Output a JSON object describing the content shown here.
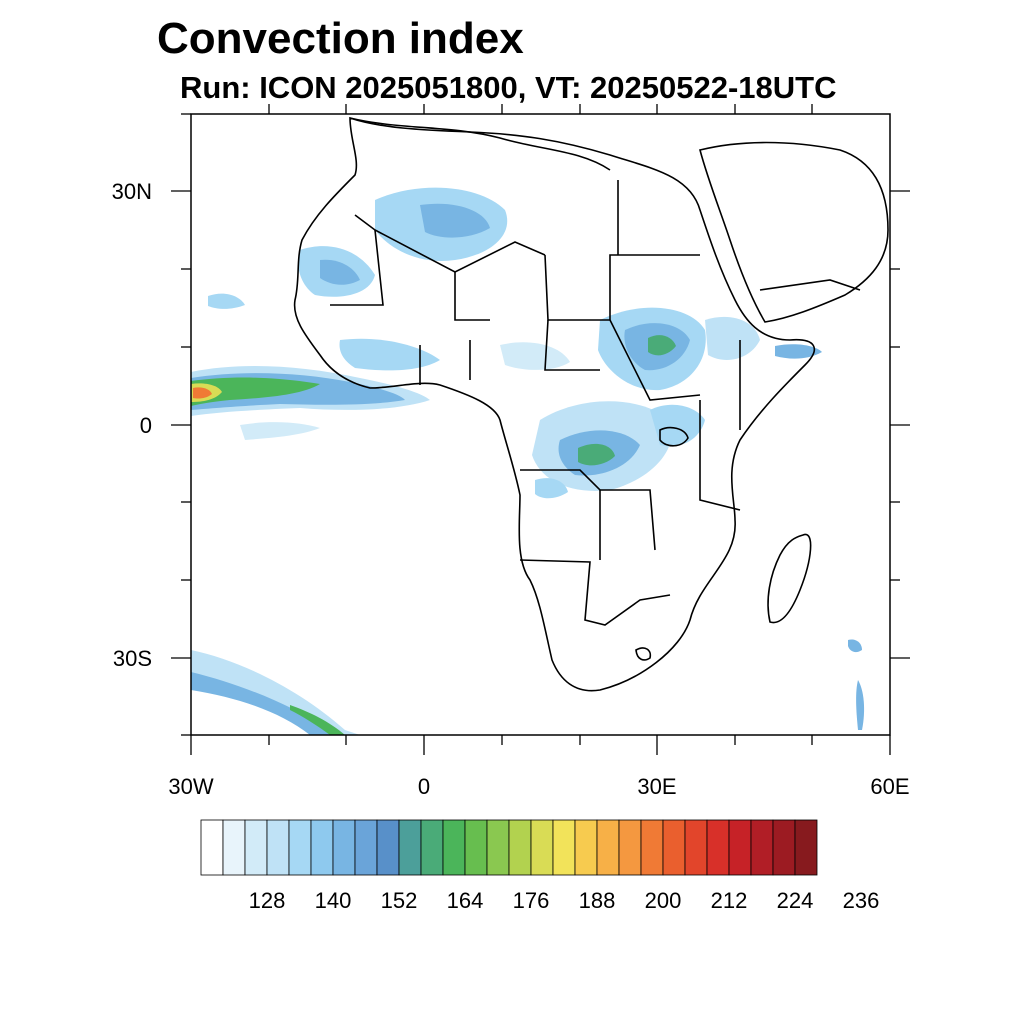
{
  "title": "Convection index",
  "subtitle": "Run: ICON 2025051800,  VT: 20250522-18UTC",
  "map": {
    "lon_range": [
      -30,
      60
    ],
    "lat_range": [
      -40,
      40
    ],
    "y_tick_labels": [
      "30N",
      "0",
      "30S"
    ],
    "x_tick_labels": [
      "30W",
      "0",
      "30E",
      "60E"
    ],
    "field": "convection index (shaded contours)",
    "land_outline_color": "#000000",
    "ocean_land_fill": "#ffffff"
  },
  "colorbar": {
    "colors": [
      "#ffffff",
      "#e8f4fb",
      "#d2ebf8",
      "#bfe2f6",
      "#a6d8f4",
      "#8ec9ee",
      "#78b5e3",
      "#6aa4d9",
      "#5890c9",
      "#4c9f9a",
      "#4aab78",
      "#4bb55a",
      "#67be4f",
      "#8ac850",
      "#b2d24f",
      "#d9dc55",
      "#f2e35a",
      "#f7cb4f",
      "#f7b047",
      "#f49840",
      "#f07a35",
      "#ea5f2e",
      "#e2452b",
      "#d83029",
      "#c62227",
      "#b11e26",
      "#9c1b22",
      "#871a1e"
    ],
    "labels": [
      "128",
      "140",
      "152",
      "164",
      "176",
      "188",
      "200",
      "212",
      "224",
      "236"
    ]
  }
}
